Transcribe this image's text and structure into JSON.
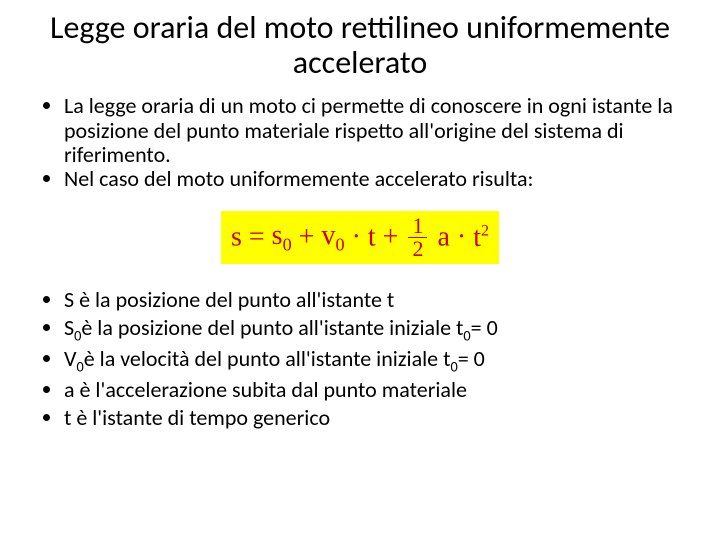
{
  "title": "Legge oraria del moto rettilineo uniformemente accelerato",
  "bullets_top": [
    "La legge oraria di un moto ci permette di conoscere in ogni istante la posizione del punto materiale rispetto all'origine del sistema di riferimento.",
    "Nel caso del moto uniformemente accelerato risulta:"
  ],
  "formula": {
    "s": "s",
    "eq": "=",
    "s0_base": "s",
    "s0_sub": "0",
    "plus1": "+",
    "v0_base": "v",
    "v0_sub": "0",
    "dot1": "·",
    "t1": "t",
    "plus2": "+",
    "frac_num": "1",
    "frac_den": "2",
    "a": "a",
    "dot2": "·",
    "t2": "t",
    "exp": "2",
    "background": "#ffff00",
    "color": "#cc0000",
    "fontsize": 28
  },
  "bullets_bottom": [
    {
      "pre": "S  è la posizione del punto all'istante  t",
      "sub": "",
      "post": ""
    },
    {
      "pre": "S",
      "sub": "0",
      "post": "  è la posizione del punto all'istante iniziale  t",
      "sub2": "0",
      "post2": " = 0"
    },
    {
      "pre": "V",
      "sub": "0",
      "post": " è la velocità del punto all'istante iniziale  t",
      "sub2": "0",
      "post2": " = 0"
    },
    {
      "pre": "a   è l'accelerazione subita dal punto materiale",
      "sub": "",
      "post": ""
    },
    {
      "pre": "t  è l'istante di tempo generico",
      "sub": "",
      "post": ""
    }
  ],
  "styling": {
    "background_color": "#ffffff",
    "text_color": "#000000",
    "title_fontsize": 32,
    "body_fontsize": 22,
    "font_family": "Calibri"
  }
}
